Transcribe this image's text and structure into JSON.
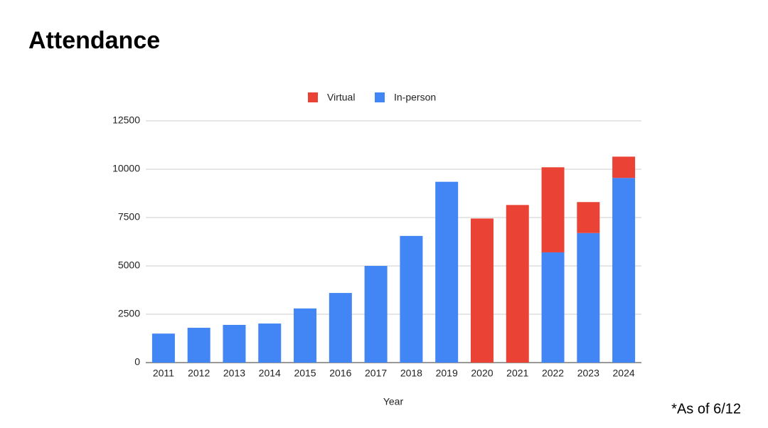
{
  "chart_data": {
    "type": "stacked-bar",
    "title": "Attendance",
    "x_label": "Year",
    "note": "*As of 6/12",
    "categories": [
      "2011",
      "2012",
      "2013",
      "2014",
      "2015",
      "2016",
      "2017",
      "2018",
      "2019",
      "2020",
      "2021",
      "2022",
      "2023",
      "2024"
    ],
    "series": [
      {
        "name": "Virtual",
        "color": "#ea4335",
        "values": [
          0,
          0,
          0,
          0,
          0,
          0,
          0,
          0,
          0,
          7450,
          8150,
          4400,
          1600,
          1100
        ]
      },
      {
        "name": "In-person",
        "color": "#4285f4",
        "values": [
          1500,
          1800,
          1950,
          2020,
          2800,
          3600,
          5000,
          6550,
          9350,
          0,
          0,
          5700,
          6700,
          9550
        ]
      }
    ],
    "ylim": [
      0,
      12500
    ],
    "yticks": [
      0,
      2500,
      5000,
      7500,
      10000,
      12500
    ],
    "grid": true,
    "legend": "top"
  }
}
